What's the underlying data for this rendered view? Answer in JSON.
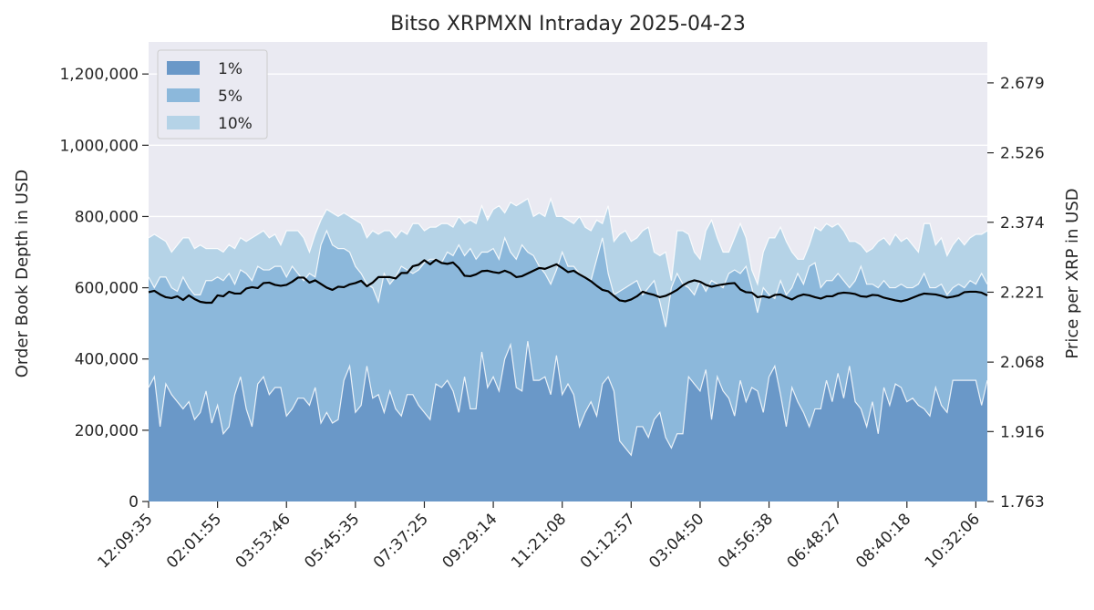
{
  "chart_data": {
    "type": "area",
    "title": "Bitso XRPMXN Intraday 2025-04-23",
    "ylabel_left": "Order Book Depth in USD",
    "ylabel_right": "Price per XRP in USD",
    "xlabel": "",
    "ylim_left": [
      0,
      1290000
    ],
    "ylim_right": [
      1.763,
      2.7686
    ],
    "y_ticks_left": [
      "0",
      "200,000",
      "400,000",
      "600,000",
      "800,000",
      "1,000,000",
      "1,200,000"
    ],
    "y_tick_values_left": [
      0,
      200000,
      400000,
      600000,
      800000,
      1000000,
      1200000
    ],
    "y_ticks_right": [
      "1.763",
      "1.916",
      "2.068",
      "2.221",
      "2.374",
      "2.526",
      "2.679"
    ],
    "y_tick_values_right": [
      1.763,
      1.916,
      2.068,
      2.221,
      2.374,
      2.526,
      2.679
    ],
    "x_ticks": [
      "12:09:35",
      "02:01:55",
      "03:53:46",
      "05:45:35",
      "07:37:25",
      "09:29:14",
      "11:21:08",
      "01:12:57",
      "03:04:50",
      "04:56:38",
      "06:48:27",
      "08:40:18",
      "10:32:06"
    ],
    "x_tick_index": [
      0,
      12,
      24,
      36,
      48,
      60,
      72,
      84,
      96,
      108,
      120,
      132,
      144
    ],
    "grid": true,
    "legend_position": "top-left",
    "colors": {
      "band_1pct": "#6a98c8",
      "band_5pct": "#8cb8db",
      "band_10pct": "#b5d3e7",
      "price_line": "#000000",
      "plot_bg": "#eaeaf2",
      "grid": "#ffffff"
    },
    "series": [
      {
        "name": "1%",
        "values": [
          320000,
          350000,
          210000,
          330000,
          300000,
          280000,
          260000,
          280000,
          230000,
          250000,
          310000,
          220000,
          270000,
          190000,
          210000,
          300000,
          350000,
          260000,
          210000,
          330000,
          350000,
          300000,
          320000,
          320000,
          240000,
          260000,
          290000,
          290000,
          270000,
          320000,
          220000,
          250000,
          220000,
          230000,
          340000,
          380000,
          250000,
          270000,
          380000,
          290000,
          300000,
          250000,
          310000,
          260000,
          240000,
          300000,
          300000,
          270000,
          250000,
          230000,
          330000,
          320000,
          340000,
          310000,
          250000,
          350000,
          260000,
          260000,
          420000,
          320000,
          350000,
          310000,
          400000,
          440000,
          320000,
          310000,
          450000,
          340000,
          340000,
          350000,
          300000,
          410000,
          300000,
          330000,
          300000,
          210000,
          250000,
          280000,
          240000,
          330000,
          350000,
          310000,
          170000,
          150000,
          130000,
          210000,
          210000,
          180000,
          230000,
          250000,
          180000,
          150000,
          190000,
          190000,
          350000,
          330000,
          310000,
          370000,
          230000,
          350000,
          310000,
          290000,
          240000,
          340000,
          280000,
          320000,
          310000,
          250000,
          350000,
          380000,
          300000,
          210000,
          320000,
          280000,
          250000,
          210000,
          260000,
          260000,
          340000,
          280000,
          360000,
          290000,
          380000,
          280000,
          260000,
          210000,
          280000,
          190000,
          320000,
          270000,
          330000,
          320000,
          280000,
          290000,
          270000,
          260000,
          240000,
          320000,
          270000,
          250000,
          340000,
          340000,
          340000,
          340000,
          340000,
          270000,
          340000
        ],
        "color": "#6a98c8"
      },
      {
        "name": "5%",
        "values": [
          630000,
          600000,
          630000,
          630000,
          600000,
          590000,
          630000,
          600000,
          580000,
          580000,
          620000,
          620000,
          630000,
          620000,
          640000,
          610000,
          650000,
          640000,
          620000,
          660000,
          650000,
          650000,
          660000,
          660000,
          630000,
          660000,
          640000,
          620000,
          640000,
          630000,
          720000,
          760000,
          720000,
          710000,
          710000,
          700000,
          660000,
          640000,
          610000,
          600000,
          560000,
          640000,
          610000,
          630000,
          660000,
          650000,
          640000,
          650000,
          670000,
          680000,
          680000,
          670000,
          700000,
          690000,
          720000,
          690000,
          710000,
          680000,
          700000,
          700000,
          710000,
          680000,
          740000,
          700000,
          680000,
          720000,
          700000,
          690000,
          660000,
          640000,
          610000,
          650000,
          700000,
          660000,
          660000,
          640000,
          630000,
          620000,
          680000,
          740000,
          640000,
          580000,
          590000,
          600000,
          610000,
          620000,
          580000,
          600000,
          620000,
          560000,
          490000,
          600000,
          640000,
          610000,
          600000,
          580000,
          620000,
          590000,
          620000,
          610000,
          600000,
          640000,
          650000,
          640000,
          660000,
          600000,
          530000,
          600000,
          580000,
          570000,
          620000,
          580000,
          600000,
          640000,
          610000,
          660000,
          670000,
          600000,
          620000,
          620000,
          640000,
          620000,
          600000,
          620000,
          660000,
          610000,
          610000,
          600000,
          620000,
          600000,
          600000,
          610000,
          600000,
          600000,
          610000,
          640000,
          600000,
          600000,
          610000,
          580000,
          600000,
          610000,
          600000,
          620000,
          610000,
          640000,
          610000
        ],
        "color": "#8cb8db"
      },
      {
        "name": "10%",
        "values": [
          740000,
          750000,
          740000,
          730000,
          700000,
          720000,
          740000,
          740000,
          710000,
          720000,
          710000,
          710000,
          710000,
          700000,
          720000,
          710000,
          740000,
          730000,
          740000,
          750000,
          760000,
          740000,
          750000,
          720000,
          760000,
          760000,
          760000,
          740000,
          700000,
          750000,
          790000,
          820000,
          810000,
          800000,
          810000,
          800000,
          790000,
          780000,
          740000,
          760000,
          750000,
          760000,
          760000,
          740000,
          760000,
          750000,
          780000,
          780000,
          760000,
          770000,
          770000,
          780000,
          780000,
          770000,
          800000,
          780000,
          790000,
          780000,
          830000,
          790000,
          820000,
          830000,
          810000,
          840000,
          830000,
          840000,
          850000,
          800000,
          810000,
          800000,
          850000,
          800000,
          800000,
          790000,
          780000,
          800000,
          770000,
          760000,
          790000,
          780000,
          830000,
          730000,
          750000,
          760000,
          730000,
          740000,
          760000,
          770000,
          700000,
          690000,
          700000,
          620000,
          760000,
          760000,
          750000,
          700000,
          680000,
          760000,
          790000,
          740000,
          700000,
          700000,
          740000,
          780000,
          740000,
          650000,
          610000,
          700000,
          740000,
          740000,
          770000,
          730000,
          700000,
          680000,
          680000,
          720000,
          770000,
          760000,
          780000,
          770000,
          780000,
          760000,
          730000,
          730000,
          720000,
          700000,
          710000,
          730000,
          740000,
          720000,
          750000,
          730000,
          740000,
          720000,
          700000,
          780000,
          780000,
          720000,
          740000,
          690000,
          720000,
          740000,
          720000,
          740000,
          750000,
          750000,
          760000
        ],
        "color": "#b5d3e7"
      },
      {
        "name": "Price",
        "axis": "right",
        "values": [
          2.221,
          2.224,
          2.216,
          2.21,
          2.208,
          2.212,
          2.204,
          2.214,
          2.206,
          2.2,
          2.198,
          2.198,
          2.214,
          2.212,
          2.222,
          2.218,
          2.218,
          2.229,
          2.232,
          2.23,
          2.241,
          2.242,
          2.237,
          2.235,
          2.237,
          2.244,
          2.253,
          2.253,
          2.242,
          2.247,
          2.239,
          2.231,
          2.226,
          2.233,
          2.232,
          2.238,
          2.241,
          2.246,
          2.234,
          2.242,
          2.254,
          2.254,
          2.254,
          2.251,
          2.263,
          2.263,
          2.278,
          2.281,
          2.291,
          2.282,
          2.292,
          2.285,
          2.283,
          2.286,
          2.274,
          2.257,
          2.256,
          2.26,
          2.267,
          2.268,
          2.265,
          2.263,
          2.268,
          2.263,
          2.254,
          2.256,
          2.262,
          2.268,
          2.274,
          2.272,
          2.277,
          2.282,
          2.274,
          2.265,
          2.268,
          2.26,
          2.253,
          2.245,
          2.235,
          2.226,
          2.223,
          2.213,
          2.203,
          2.201,
          2.205,
          2.212,
          2.222,
          2.218,
          2.215,
          2.21,
          2.213,
          2.219,
          2.226,
          2.236,
          2.243,
          2.247,
          2.244,
          2.237,
          2.233,
          2.236,
          2.238,
          2.24,
          2.241,
          2.227,
          2.221,
          2.22,
          2.21,
          2.212,
          2.209,
          2.215,
          2.216,
          2.21,
          2.205,
          2.212,
          2.216,
          2.214,
          2.21,
          2.207,
          2.212,
          2.212,
          2.218,
          2.22,
          2.219,
          2.217,
          2.212,
          2.211,
          2.215,
          2.214,
          2.209,
          2.206,
          2.203,
          2.201,
          2.204,
          2.209,
          2.214,
          2.218,
          2.217,
          2.216,
          2.213,
          2.209,
          2.211,
          2.214,
          2.221,
          2.222,
          2.222,
          2.22,
          2.214
        ],
        "color": "#000000"
      }
    ]
  }
}
